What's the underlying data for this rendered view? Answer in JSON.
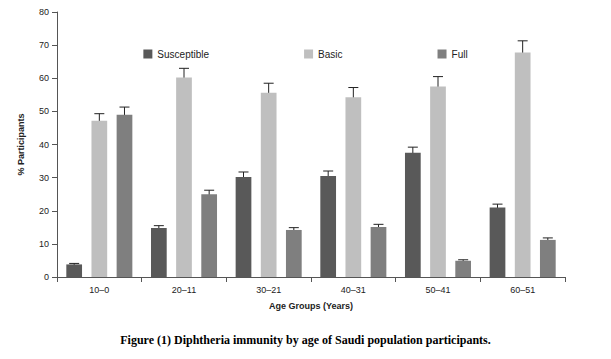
{
  "chart_data": {
    "type": "bar",
    "title": "Figure (1) Diphtheria immunity by age of Saudi population participants.",
    "x_label": "Age Groups (Years)",
    "y_label": "% Participants",
    "categories": [
      "10–0",
      "20–11",
      "30–21",
      "40–31",
      "50–41",
      "60–51"
    ],
    "series": [
      {
        "name": "Susceptible",
        "color": "#595959",
        "values": [
          3.8,
          14.8,
          30.2,
          30.5,
          37.5,
          21.0
        ],
        "errors": [
          0.3,
          0.7,
          1.5,
          1.5,
          1.7,
          1.0
        ]
      },
      {
        "name": "Basic",
        "color": "#bfbfbf",
        "values": [
          47.2,
          60.2,
          55.6,
          54.3,
          57.5,
          67.8
        ],
        "errors": [
          2.1,
          2.8,
          2.9,
          2.9,
          3.0,
          3.5
        ]
      },
      {
        "name": "Full",
        "color": "#7f7f7f",
        "values": [
          49.0,
          25.0,
          14.2,
          15.1,
          4.9,
          11.2
        ],
        "errors": [
          2.3,
          1.2,
          0.7,
          0.8,
          0.3,
          0.6
        ]
      }
    ],
    "ylim": [
      0,
      80
    ],
    "yticks": [
      0,
      10,
      20,
      30,
      40,
      50,
      60,
      70,
      80
    ],
    "grid": false,
    "legend": "top"
  }
}
